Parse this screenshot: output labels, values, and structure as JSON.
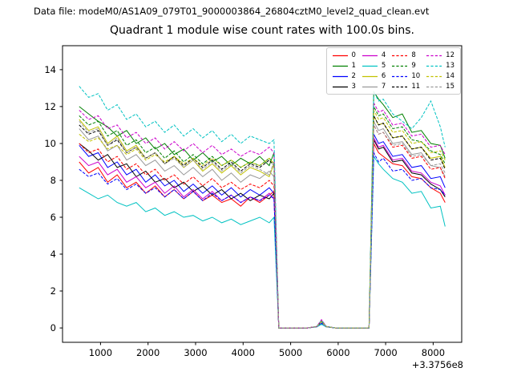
{
  "header": {
    "data_file_label": "Data file: modeM0/AS1A09_079T01_9000003864_26804cztM0_level2_quad_clean.evt"
  },
  "chart_data": {
    "type": "line",
    "title": "Quadrant 1 module wise count rates with 100.0s bins.",
    "xlabel": "",
    "ylabel": "",
    "x_offset_text": "+3.3756e8",
    "xlim": [
      200,
      8600
    ],
    "ylim": [
      -0.78,
      15.3
    ],
    "x_ticks": [
      1000,
      2000,
      3000,
      4000,
      5000,
      6000,
      7000,
      8000
    ],
    "y_ticks": [
      0,
      2,
      4,
      6,
      8,
      10,
      12,
      14
    ],
    "grid": false,
    "legend_position": "upper right",
    "legend_ncol": 4,
    "bin_seconds": 100.0,
    "x": [
      550,
      750,
      950,
      1150,
      1350,
      1550,
      1750,
      1950,
      2150,
      2350,
      2550,
      2750,
      2950,
      3150,
      3350,
      3550,
      3750,
      3950,
      4150,
      4350,
      4550,
      4650,
      4750,
      4950,
      5150,
      5350,
      5550,
      5650,
      5750,
      5950,
      6150,
      6350,
      6550,
      6650,
      6750,
      6850,
      6950,
      7150,
      7350,
      7550,
      7750,
      7950,
      8150,
      8250
    ],
    "series": [
      {
        "name": "0",
        "color": "#ff0000",
        "style": "solid",
        "values": [
          9.0,
          8.4,
          8.7,
          7.9,
          8.3,
          7.6,
          7.9,
          7.3,
          7.7,
          7.1,
          7.5,
          7.0,
          7.4,
          6.9,
          7.2,
          6.8,
          7.0,
          6.6,
          7.1,
          6.8,
          7.2,
          7.4,
          0,
          0,
          0,
          0,
          0.06,
          0.3,
          0.06,
          0,
          0,
          0,
          0,
          0,
          10.0,
          9.5,
          9.3,
          8.9,
          8.8,
          8.2,
          8.1,
          7.6,
          7.3,
          6.8
        ]
      },
      {
        "name": "1",
        "color": "#008000",
        "style": "solid",
        "values": [
          12.0,
          11.6,
          11.2,
          10.9,
          10.4,
          10.7,
          10.0,
          10.3,
          9.7,
          10.0,
          9.4,
          9.7,
          9.1,
          9.5,
          9.0,
          9.3,
          8.8,
          9.2,
          8.9,
          9.3,
          8.8,
          9.5,
          0,
          0,
          0,
          0,
          0.07,
          0.35,
          0.07,
          0,
          0,
          0,
          0,
          0,
          12.8,
          12.4,
          12.1,
          11.4,
          11.6,
          10.6,
          10.7,
          10.0,
          9.9,
          9.2
        ]
      },
      {
        "name": "2",
        "color": "#0000ff",
        "style": "solid",
        "values": [
          9.9,
          9.3,
          9.5,
          8.7,
          9.0,
          8.3,
          8.6,
          7.9,
          8.3,
          7.7,
          8.0,
          7.4,
          7.8,
          7.3,
          7.7,
          7.2,
          7.6,
          7.1,
          7.5,
          7.2,
          7.6,
          7.3,
          0,
          0,
          0,
          0,
          0.06,
          0.25,
          0.06,
          0,
          0,
          0,
          0,
          0,
          10.5,
          10.0,
          10.1,
          9.3,
          9.4,
          8.7,
          8.8,
          8.1,
          8.2,
          7.6
        ]
      },
      {
        "name": "3",
        "color": "#000000",
        "style": "solid",
        "values": [
          10.0,
          9.6,
          9.1,
          9.4,
          8.7,
          8.9,
          8.2,
          8.5,
          7.9,
          8.1,
          7.6,
          7.9,
          7.4,
          7.7,
          7.2,
          7.5,
          7.0,
          7.3,
          6.9,
          7.2,
          7.0,
          7.3,
          0,
          0,
          0,
          0,
          0.07,
          0.33,
          0.07,
          0,
          0,
          0,
          0,
          0,
          10.2,
          9.7,
          9.8,
          9.0,
          9.1,
          8.4,
          8.3,
          7.8,
          7.5,
          7.1
        ]
      },
      {
        "name": "4",
        "color": "#cc00cc",
        "style": "solid",
        "values": [
          9.3,
          8.8,
          9.0,
          8.3,
          8.6,
          7.9,
          8.2,
          7.6,
          7.9,
          7.3,
          7.7,
          7.1,
          7.5,
          7.0,
          7.4,
          6.9,
          7.2,
          6.8,
          7.1,
          6.9,
          7.3,
          7.0,
          0,
          0,
          0,
          0,
          0.08,
          0.42,
          0.08,
          0,
          0,
          0,
          0,
          0,
          10.3,
          9.8,
          9.9,
          9.1,
          9.2,
          8.5,
          8.4,
          7.9,
          7.7,
          7.2
        ]
      },
      {
        "name": "5",
        "color": "#00c2c2",
        "style": "solid",
        "values": [
          7.6,
          7.3,
          7.0,
          7.2,
          6.8,
          6.6,
          6.8,
          6.3,
          6.5,
          6.1,
          6.3,
          6.0,
          6.1,
          5.8,
          6.0,
          5.7,
          5.9,
          5.6,
          5.8,
          6.0,
          5.7,
          6.0,
          0,
          0,
          0,
          0,
          0.05,
          0.2,
          0.05,
          0,
          0,
          0,
          0,
          0,
          9.3,
          8.9,
          8.6,
          8.1,
          7.9,
          7.3,
          7.4,
          6.5,
          6.6,
          5.5
        ]
      },
      {
        "name": "6",
        "color": "#c2c200",
        "style": "solid",
        "values": [
          11.3,
          10.7,
          10.9,
          10.0,
          10.4,
          9.6,
          9.9,
          9.2,
          9.5,
          8.9,
          9.3,
          8.7,
          9.1,
          8.5,
          8.9,
          8.4,
          8.8,
          8.3,
          8.7,
          8.5,
          8.2,
          8.9,
          0,
          0,
          0,
          0,
          0.07,
          0.35,
          0.07,
          0,
          0,
          0,
          0,
          0,
          11.5,
          11.0,
          11.1,
          10.3,
          10.4,
          9.7,
          9.8,
          9.2,
          9.3,
          8.7
        ]
      },
      {
        "name": "7",
        "color": "#999999",
        "style": "solid",
        "values": [
          10.8,
          10.2,
          10.4,
          9.6,
          9.9,
          9.1,
          9.4,
          8.8,
          9.1,
          8.5,
          8.8,
          8.3,
          8.7,
          8.2,
          8.6,
          8.0,
          8.4,
          7.9,
          8.3,
          8.1,
          8.5,
          8.2,
          0,
          0,
          0,
          0,
          0.06,
          0.3,
          0.06,
          0,
          0,
          0,
          0,
          0,
          11.2,
          10.7,
          10.8,
          10.0,
          10.1,
          9.4,
          9.5,
          8.8,
          8.7,
          8.2
        ]
      },
      {
        "name": "8",
        "color": "#ff0000",
        "style": "dashed",
        "values": [
          10.0,
          9.5,
          9.7,
          9.0,
          9.3,
          8.6,
          8.9,
          8.3,
          8.6,
          8.0,
          8.3,
          7.8,
          8.2,
          7.7,
          8.1,
          7.6,
          7.9,
          7.5,
          7.8,
          7.6,
          8.0,
          7.7,
          0,
          0,
          0,
          0,
          0.07,
          0.32,
          0.07,
          0,
          0,
          0,
          0,
          0,
          11.0,
          10.5,
          10.6,
          9.8,
          9.9,
          9.2,
          9.3,
          8.6,
          8.7,
          8.1
        ]
      },
      {
        "name": "9",
        "color": "#008000",
        "style": "dashed",
        "values": [
          11.5,
          11.0,
          11.2,
          10.4,
          10.7,
          9.9,
          10.2,
          9.5,
          9.8,
          9.2,
          9.6,
          9.0,
          9.4,
          8.9,
          9.3,
          8.8,
          9.1,
          8.7,
          9.0,
          8.8,
          9.2,
          8.9,
          0,
          0,
          0,
          0,
          0.07,
          0.36,
          0.07,
          0,
          0,
          0,
          0,
          0,
          12.0,
          11.5,
          11.6,
          10.8,
          10.9,
          10.2,
          10.1,
          9.6,
          9.4,
          8.9
        ]
      },
      {
        "name": "10",
        "color": "#0000ff",
        "style": "dashed",
        "values": [
          8.6,
          8.2,
          8.4,
          7.8,
          8.1,
          7.5,
          7.8,
          7.3,
          7.6,
          7.1,
          7.5,
          7.0,
          7.4,
          6.9,
          7.3,
          6.9,
          7.2,
          6.8,
          7.1,
          6.9,
          7.2,
          7.0,
          0,
          0,
          0,
          0,
          0.06,
          0.28,
          0.06,
          0,
          0,
          0,
          0,
          0,
          9.5,
          9.0,
          9.2,
          8.5,
          8.6,
          8.0,
          8.1,
          7.6,
          7.5,
          7.2
        ]
      },
      {
        "name": "11",
        "color": "#000000",
        "style": "dashed",
        "values": [
          11.0,
          10.5,
          10.7,
          9.9,
          10.2,
          9.5,
          9.8,
          9.2,
          9.5,
          8.9,
          9.3,
          8.8,
          9.2,
          8.7,
          9.1,
          8.6,
          9.0,
          8.5,
          8.9,
          8.7,
          9.1,
          8.8,
          0,
          0,
          0,
          0,
          0.07,
          0.34,
          0.07,
          0,
          0,
          0,
          0,
          0,
          11.5,
          11.0,
          11.1,
          10.3,
          10.4,
          9.7,
          9.8,
          9.1,
          9.2,
          8.6
        ]
      },
      {
        "name": "12",
        "color": "#cc00cc",
        "style": "dashed",
        "values": [
          11.8,
          11.3,
          11.5,
          10.8,
          11.0,
          10.3,
          10.6,
          10.0,
          10.3,
          9.7,
          10.1,
          9.6,
          10.0,
          9.5,
          9.9,
          9.4,
          9.7,
          9.3,
          9.6,
          9.4,
          9.8,
          9.5,
          0,
          0,
          0,
          0,
          0.08,
          0.45,
          0.08,
          0,
          0,
          0,
          0,
          0,
          12.2,
          11.7,
          11.8,
          11.0,
          11.1,
          10.4,
          10.5,
          9.8,
          9.9,
          9.4
        ]
      },
      {
        "name": "13",
        "color": "#00c2c2",
        "style": "dashed",
        "values": [
          13.1,
          12.5,
          12.7,
          11.8,
          12.1,
          11.3,
          11.6,
          10.9,
          11.2,
          10.6,
          11.0,
          10.4,
          10.8,
          10.3,
          10.7,
          10.1,
          10.5,
          10.0,
          10.4,
          10.2,
          10.0,
          10.2,
          0,
          0,
          0,
          0,
          0.08,
          0.4,
          0.08,
          0,
          0,
          0,
          0,
          0,
          12.8,
          12.3,
          12.4,
          11.6,
          11.2,
          10.8,
          11.4,
          12.3,
          10.9,
          9.8
        ]
      },
      {
        "name": "14",
        "color": "#c2c200",
        "style": "dashed",
        "values": [
          10.5,
          10.1,
          10.3,
          9.7,
          9.9,
          9.4,
          9.7,
          9.1,
          9.4,
          9.0,
          9.3,
          8.9,
          9.2,
          8.8,
          9.2,
          8.8,
          9.1,
          8.7,
          9.0,
          8.8,
          9.2,
          8.9,
          0,
          0,
          0,
          0,
          0.07,
          0.36,
          0.07,
          0,
          0,
          0,
          0,
          0,
          11.8,
          11.3,
          11.4,
          10.6,
          10.7,
          10.0,
          10.1,
          9.5,
          9.6,
          9.1
        ]
      },
      {
        "name": "15",
        "color": "#999999",
        "style": "dashed",
        "values": [
          11.2,
          10.6,
          10.8,
          9.9,
          10.3,
          9.5,
          9.8,
          9.2,
          9.5,
          8.9,
          9.2,
          8.7,
          9.1,
          8.6,
          9.0,
          8.5,
          8.9,
          8.4,
          8.8,
          8.6,
          8.3,
          9.0,
          0,
          0,
          0,
          0,
          0.06,
          0.3,
          0.06,
          0,
          0,
          0,
          0,
          0,
          11.0,
          10.5,
          10.6,
          9.9,
          10.0,
          9.3,
          9.4,
          8.8,
          8.9,
          8.4
        ]
      }
    ]
  }
}
